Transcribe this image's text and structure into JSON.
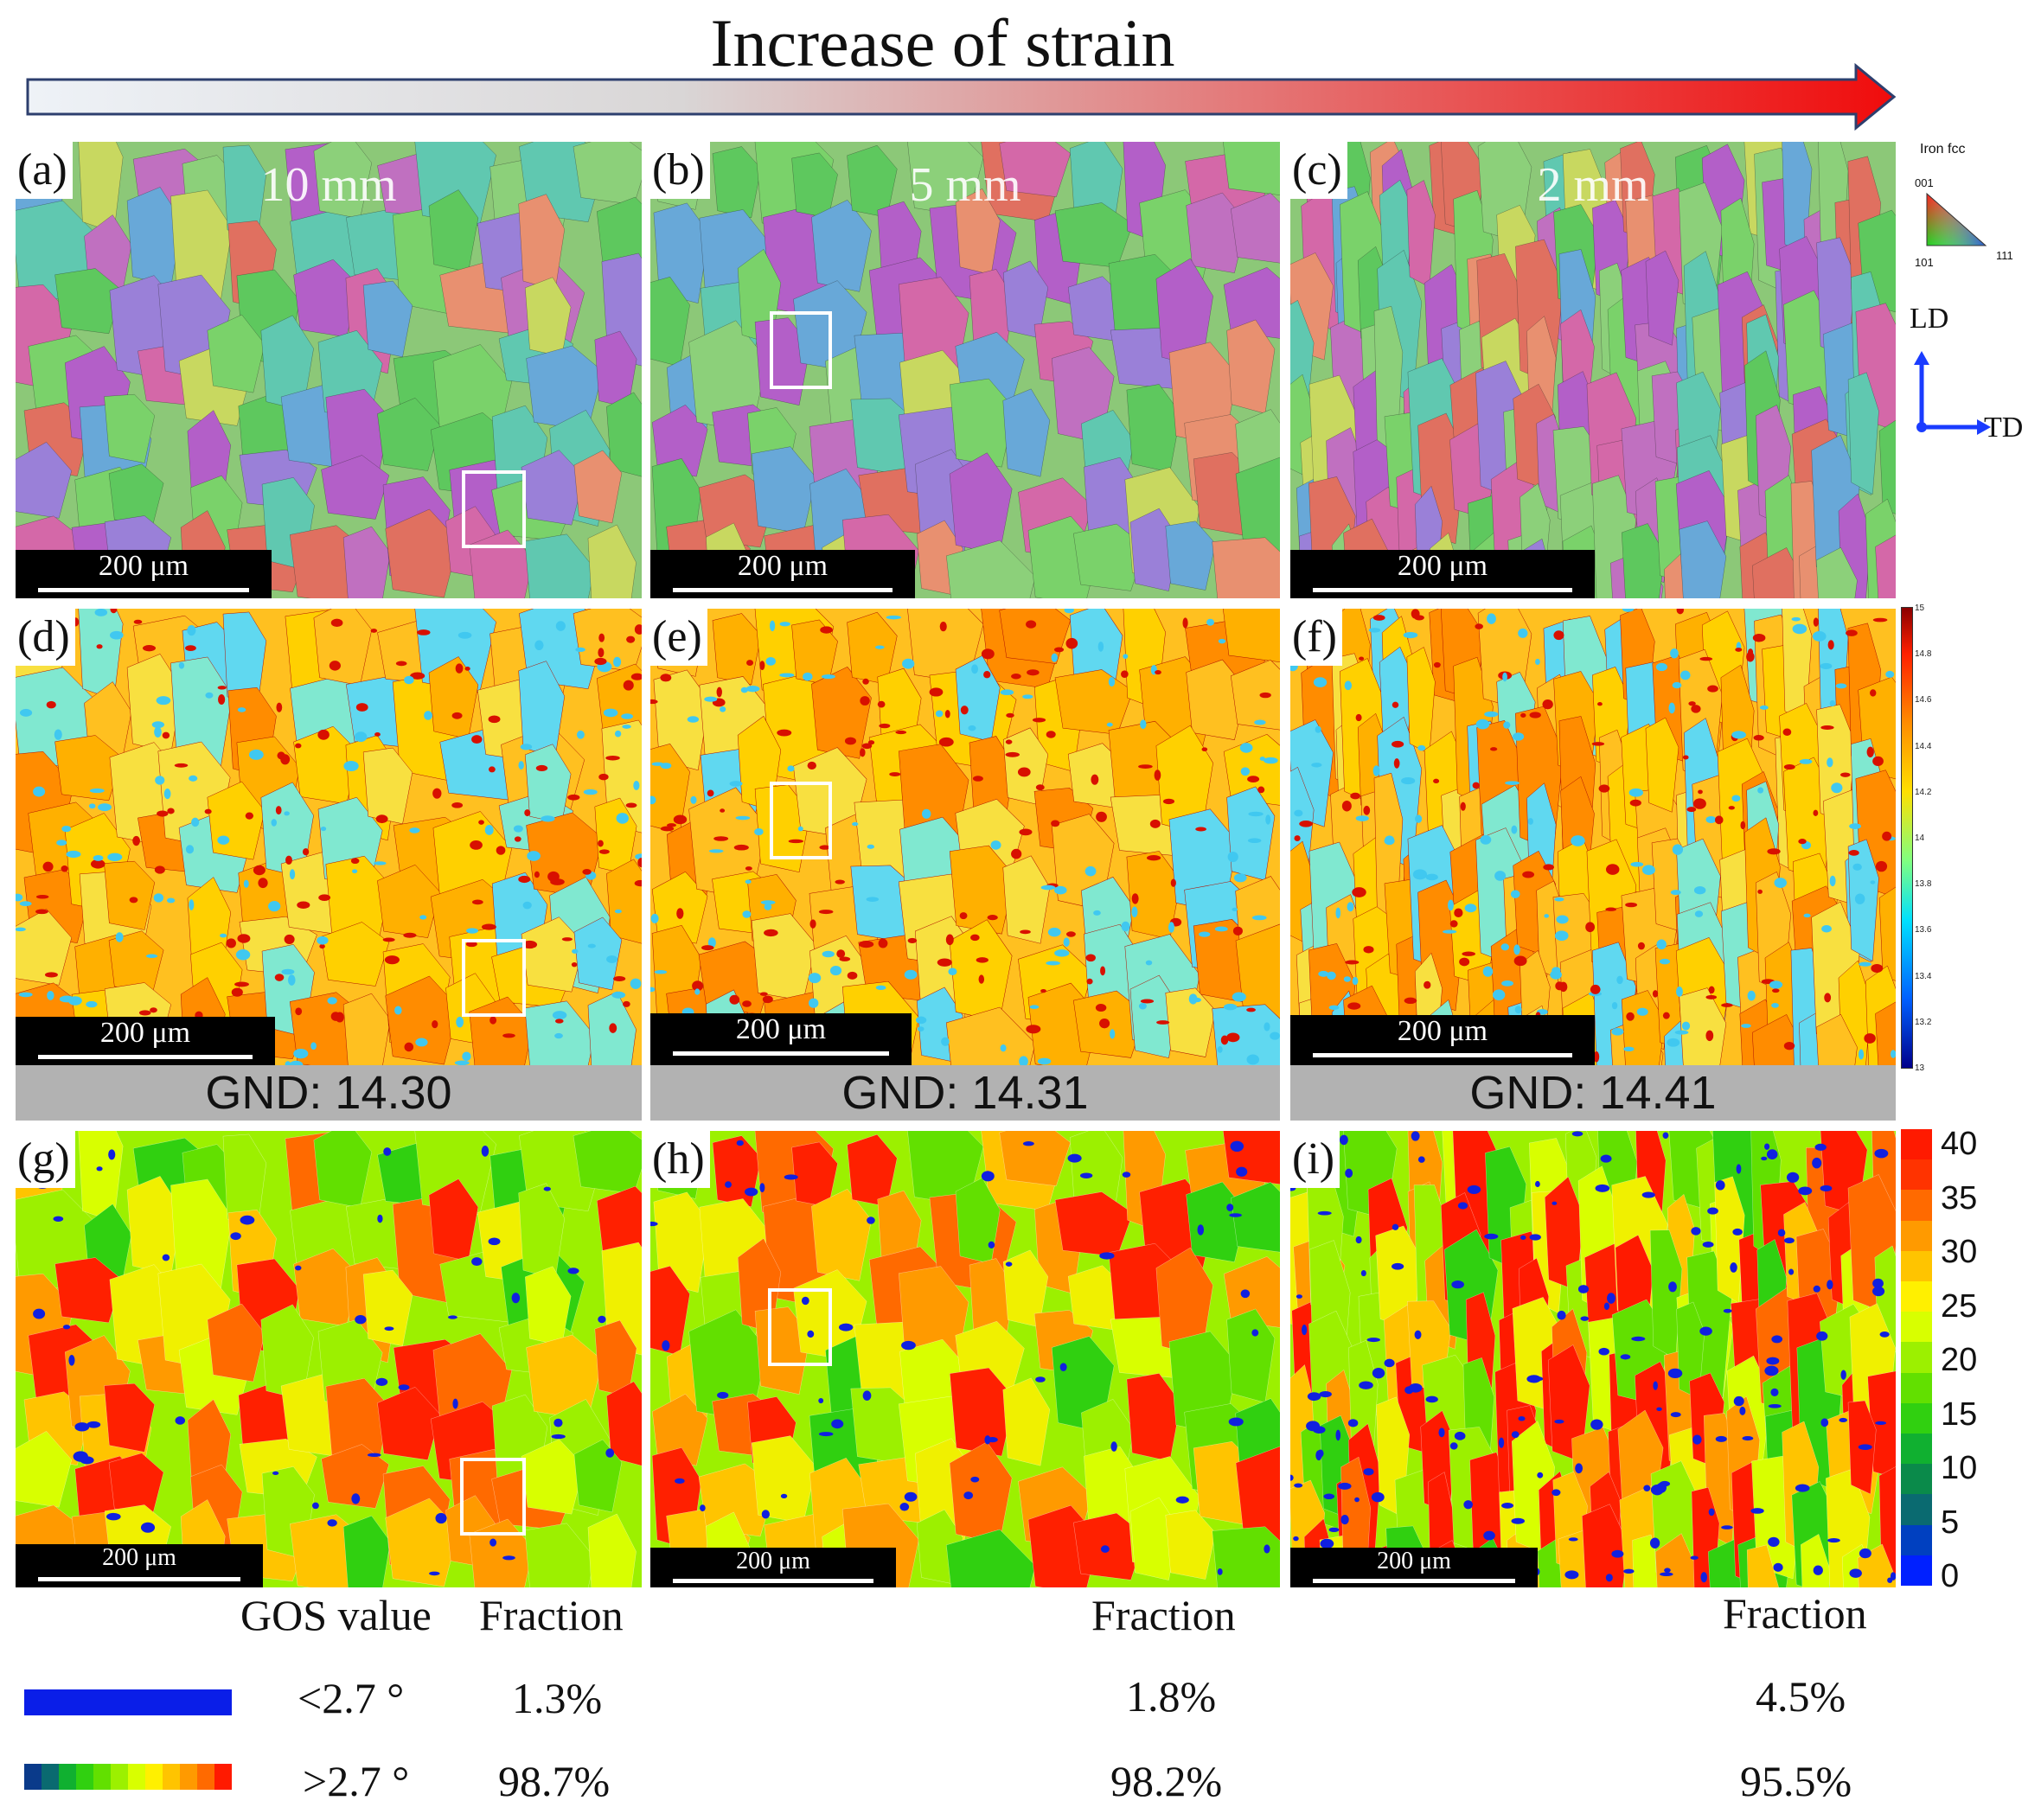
{
  "title": "Increase of strain",
  "panels": {
    "a": {
      "label": "(a)",
      "distance": "10 mm",
      "scale": "200 μm"
    },
    "b": {
      "label": "(b)",
      "distance": "5 mm",
      "scale": "200 μm"
    },
    "c": {
      "label": "(c)",
      "distance": "2 mm",
      "scale": "200 μm"
    },
    "d": {
      "label": "(d)",
      "scale": "200 μm"
    },
    "e": {
      "label": "(e)",
      "scale": "200 μm"
    },
    "f": {
      "label": "(f)",
      "scale": "200 μm"
    },
    "g": {
      "label": "(g)",
      "scale": "200 μm"
    },
    "h": {
      "label": "(h)",
      "scale": "200 μm"
    },
    "i": {
      "label": "(i)",
      "scale": "200 μm"
    }
  },
  "ipf_key": {
    "title": "Iron fcc",
    "v001": "001",
    "v101": "101",
    "v111": "111"
  },
  "axes": {
    "ld": "LD",
    "td": "TD"
  },
  "gnd": {
    "a": "GND: 14.30",
    "b": "GND: 14.31",
    "c": "GND: 14.41"
  },
  "gnd_colorbar": [
    "15",
    "14.8",
    "14.6",
    "14.4",
    "14.2",
    "14",
    "13.8",
    "13.6",
    "13.4",
    "13.2",
    "13"
  ],
  "gos_colorbar": [
    "40",
    "35",
    "30",
    "25",
    "20",
    "15",
    "10",
    "5",
    "0"
  ],
  "legend": {
    "header_value": "GOS value",
    "header_fraction": "Fraction",
    "low_label": "<2.7 °",
    "high_label": ">2.7 °",
    "col_a": {
      "low": "1.3%",
      "high": "98.7%"
    },
    "col_b": {
      "header": "Fraction",
      "low": "1.8%",
      "high": "98.2%"
    },
    "col_c": {
      "header": "Fraction",
      "low": "4.5%",
      "high": "95.5%"
    }
  },
  "colors": {
    "ipf_red": "#e23b3b",
    "ipf_green": "#4fcf4f",
    "ipf_blue": "#4f5cff",
    "arrow_end": "#f01010"
  }
}
